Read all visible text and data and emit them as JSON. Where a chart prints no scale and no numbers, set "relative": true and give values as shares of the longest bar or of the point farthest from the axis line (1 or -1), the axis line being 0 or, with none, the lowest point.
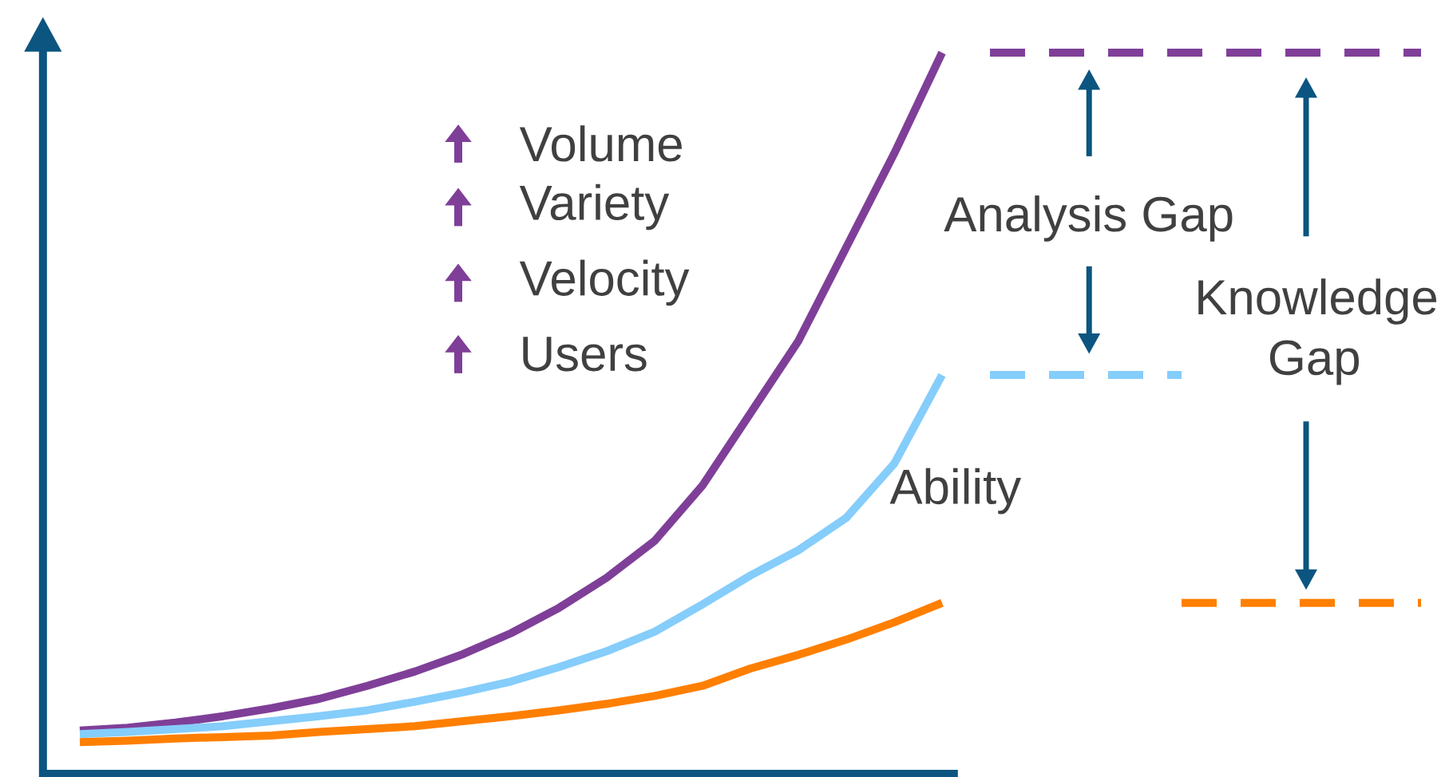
{
  "chart_data": {
    "type": "line",
    "relative": true,
    "line_style": "solid",
    "marker": "none",
    "categories": [
      null,
      null,
      null,
      null,
      null,
      null,
      null,
      null,
      null,
      null,
      null,
      null,
      null,
      null,
      null,
      null,
      null,
      null,
      null,
      null,
      null,
      null,
      null,
      null,
      null,
      null,
      null,
      null,
      null
    ],
    "series": [
      {
        "color": "#7f3f98",
        "values": [
          0.06,
          0.064,
          0.071,
          0.08,
          0.091,
          0.104,
          0.122,
          0.142,
          0.166,
          0.195,
          0.23,
          0.272,
          0.323,
          0.4,
          0.5,
          0.6,
          0.73,
          0.86,
          1.0,
          null,
          null,
          null,
          null,
          null,
          null,
          null,
          null,
          null,
          null
        ]
      },
      {
        "name": "Ability",
        "color": "#85cdfb",
        "values": [
          0.055,
          0.058,
          0.062,
          0.066,
          0.073,
          0.08,
          0.088,
          0.1,
          0.113,
          0.128,
          0.148,
          0.17,
          0.197,
          0.235,
          0.275,
          0.31,
          0.355,
          0.43,
          0.553,
          null,
          null,
          null,
          null,
          null,
          null,
          null,
          null,
          null,
          null
        ]
      },
      {
        "color": "#ff7f00",
        "values": [
          0.044,
          0.046,
          0.049,
          0.051,
          0.053,
          0.058,
          0.062,
          0.066,
          0.073,
          0.08,
          0.088,
          0.097,
          0.108,
          0.122,
          0.146,
          0.165,
          0.186,
          0.21,
          0.237,
          null,
          null,
          null,
          null,
          null,
          null,
          null,
          null,
          null,
          null
        ]
      },
      {
        "color": "#7f3f98",
        "line_style": "dashed",
        "values": [
          null,
          null,
          null,
          null,
          null,
          null,
          null,
          null,
          null,
          null,
          null,
          null,
          null,
          null,
          null,
          null,
          null,
          null,
          null,
          1.0,
          1.0,
          1.0,
          1.0,
          1.0,
          1.0,
          1.0,
          1.0,
          1.0,
          1.0
        ]
      },
      {
        "color": "#85cdfb",
        "line_style": "dashed",
        "values": [
          null,
          null,
          null,
          null,
          null,
          null,
          null,
          null,
          null,
          null,
          null,
          null,
          null,
          null,
          null,
          null,
          null,
          null,
          null,
          0.553,
          0.553,
          0.553,
          0.553,
          0.553,
          null,
          null,
          null,
          null,
          null
        ]
      },
      {
        "color": "#ff7f00",
        "line_style": "dashed",
        "values": [
          null,
          null,
          null,
          null,
          null,
          null,
          null,
          null,
          null,
          null,
          null,
          null,
          null,
          null,
          null,
          null,
          null,
          null,
          null,
          null,
          null,
          null,
          null,
          0.237,
          0.237,
          0.237,
          0.237,
          0.237,
          0.237
        ]
      }
    ],
    "annotations": [
      "Volume",
      "Variety",
      "Velocity",
      "Users",
      "Analysis Gap",
      "Knowledge Gap"
    ]
  }
}
